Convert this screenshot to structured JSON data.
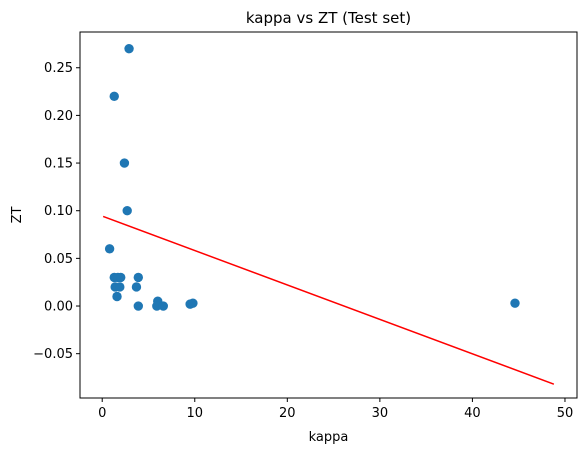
{
  "chart_data": {
    "type": "scatter",
    "title": "kappa vs ZT (Test set)",
    "xlabel": "kappa",
    "ylabel": "ZT",
    "xlim": [
      -2.4,
      51.3
    ],
    "ylim": [
      -0.0965,
      0.2875
    ],
    "xticks": [
      0,
      10,
      20,
      30,
      40,
      50
    ],
    "xtick_labels": [
      "0",
      "10",
      "20",
      "30",
      "40",
      "50"
    ],
    "yticks": [
      -0.05,
      0.0,
      0.05,
      0.1,
      0.15,
      0.2,
      0.25
    ],
    "ytick_labels": [
      "−0.05",
      "0.00",
      "0.05",
      "0.10",
      "0.15",
      "0.20",
      "0.25"
    ],
    "grid": false,
    "series": [
      {
        "kind": "scatter",
        "color": "#1f77b4",
        "points": [
          {
            "x": 2.9,
            "y": 0.27
          },
          {
            "x": 1.3,
            "y": 0.22
          },
          {
            "x": 2.4,
            "y": 0.15
          },
          {
            "x": 2.7,
            "y": 0.1
          },
          {
            "x": 0.8,
            "y": 0.06
          },
          {
            "x": 1.3,
            "y": 0.03
          },
          {
            "x": 1.7,
            "y": 0.03
          },
          {
            "x": 2.0,
            "y": 0.03
          },
          {
            "x": 3.9,
            "y": 0.03
          },
          {
            "x": 1.4,
            "y": 0.02
          },
          {
            "x": 1.9,
            "y": 0.02
          },
          {
            "x": 3.7,
            "y": 0.02
          },
          {
            "x": 1.6,
            "y": 0.01
          },
          {
            "x": 3.9,
            "y": 0.0
          },
          {
            "x": 6.0,
            "y": 0.005
          },
          {
            "x": 5.9,
            "y": 0.0
          },
          {
            "x": 6.6,
            "y": 0.0
          },
          {
            "x": 9.5,
            "y": 0.002
          },
          {
            "x": 9.8,
            "y": 0.003
          },
          {
            "x": 44.6,
            "y": 0.003
          }
        ]
      },
      {
        "kind": "line",
        "color": "#ff0000",
        "points": [
          {
            "x": 0.1,
            "y": 0.094
          },
          {
            "x": 48.8,
            "y": -0.082
          }
        ]
      }
    ]
  }
}
